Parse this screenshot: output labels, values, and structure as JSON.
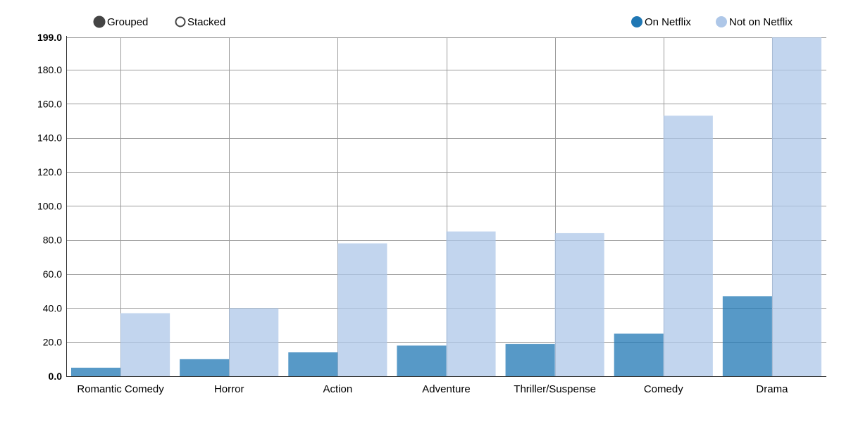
{
  "controls": {
    "grouped_label": "Grouped",
    "stacked_label": "Stacked",
    "selected_mode": "Grouped"
  },
  "legend": {
    "on_netflix_label": "On Netflix",
    "not_on_netflix_label": "Not on Netflix"
  },
  "colors": {
    "on_netflix": "#1f77b4",
    "not_on_netflix": "#aec7e8",
    "grid": "#9b9b9b",
    "axis": "#000000"
  },
  "chart_data": {
    "type": "bar",
    "mode": "grouped",
    "categories": [
      "Romantic Comedy",
      "Horror",
      "Action",
      "Adventure",
      "Thriller/Suspense",
      "Comedy",
      "Drama"
    ],
    "series": [
      {
        "name": "On Netflix",
        "values": [
          5,
          10,
          14,
          18,
          19,
          25,
          47
        ]
      },
      {
        "name": "Not on Netflix",
        "values": [
          37,
          40,
          78,
          85,
          84,
          153,
          199
        ]
      }
    ],
    "ylim": [
      0,
      199
    ],
    "yticks": [
      0,
      20,
      40,
      60,
      80,
      100,
      120,
      140,
      160,
      180,
      199
    ],
    "ytick_labels": [
      "0.0",
      "20.0",
      "40.0",
      "60.0",
      "80.0",
      "100.0",
      "120.0",
      "140.0",
      "160.0",
      "180.0",
      "199.0"
    ],
    "title": "",
    "xlabel": "",
    "ylabel": "",
    "grid": true,
    "legend_position": "top-right"
  }
}
